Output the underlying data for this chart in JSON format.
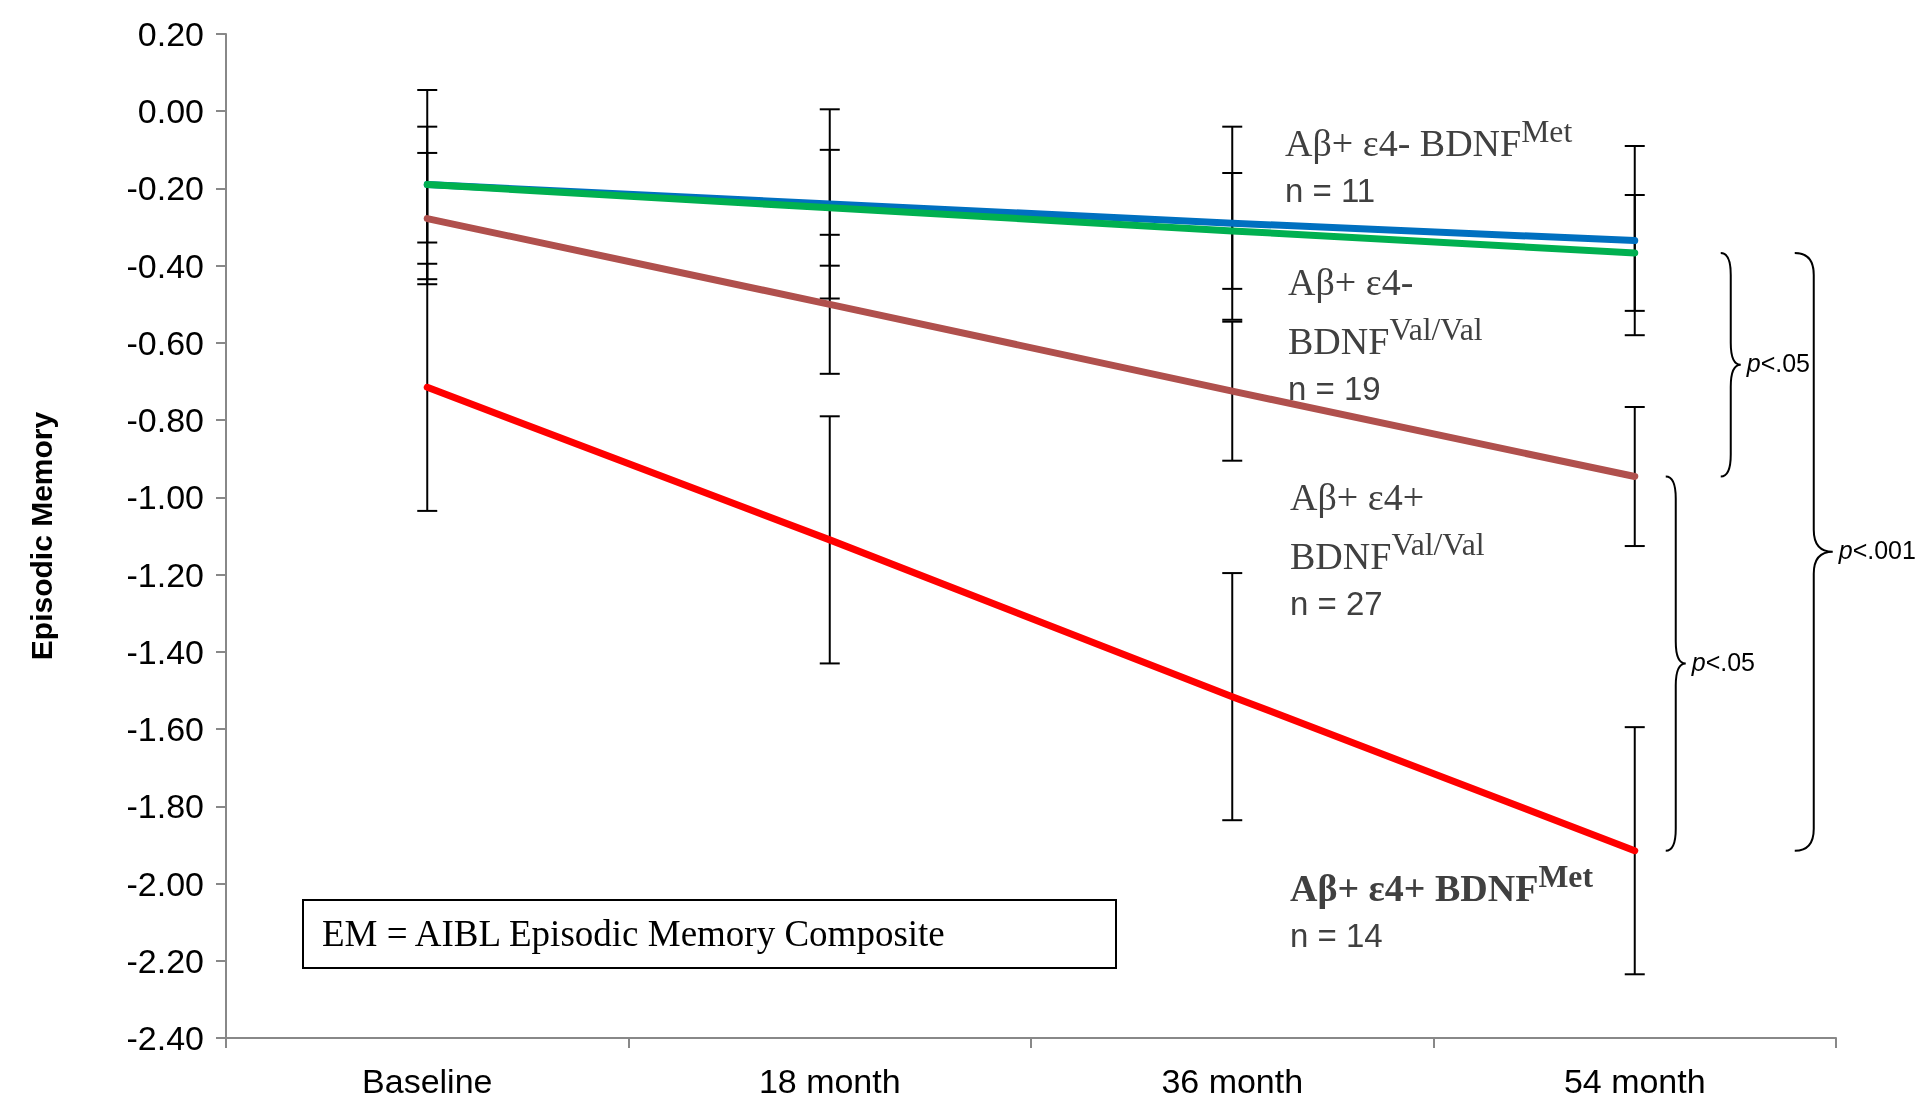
{
  "chart_data": {
    "type": "line",
    "ylabel": "Episodic Memory",
    "categories": [
      "Baseline",
      "18 month",
      "36 month",
      "54 month"
    ],
    "ylim": [
      -2.4,
      0.2
    ],
    "yticks": [
      {
        "value": 0.2,
        "label": "0.20"
      },
      {
        "value": 0,
        "label": "0.00"
      },
      {
        "value": -0.2,
        "label": "-0.20"
      },
      {
        "value": -0.4,
        "label": "-0.40"
      },
      {
        "value": -0.6,
        "label": "-0.60"
      },
      {
        "value": -0.8,
        "label": "-0.80"
      },
      {
        "value": -1,
        "label": "-1.00"
      },
      {
        "value": -1.2,
        "label": "-1.20"
      },
      {
        "value": -1.4,
        "label": "-1.40"
      },
      {
        "value": -1.6,
        "label": "-1.60"
      },
      {
        "value": -1.8,
        "label": "-1.80"
      },
      {
        "value": -2,
        "label": "-2.00"
      },
      {
        "value": -2.2,
        "label": "-2.20"
      },
      {
        "value": -2.4,
        "label": "-2.40"
      }
    ],
    "grid": false,
    "legend": false,
    "marker": "none",
    "line_style": "solid",
    "series": [
      {
        "name": "Aβ+ ε4- BDNF$^{Met}$",
        "color": "#0070c0",
        "values": [
          -0.19,
          -0.24,
          -0.29,
          -0.335
        ],
        "errors": [
          0.245,
          0.245,
          0.25,
          0.245
        ]
      },
      {
        "name": "Aβ+ ε4- BDNF$^{Val/Val}$",
        "color": "#00b050",
        "values": [
          -0.19,
          -0.25,
          -0.31,
          -0.367
        ],
        "errors": [
          0.15,
          0.15,
          0.15,
          0.15
        ]
      },
      {
        "name": "Aβ+ ε4+ BDNF$^{Val/Val}$",
        "color": "#b0504d",
        "values": [
          -0.278,
          -0.5,
          -0.725,
          -0.946
        ],
        "errors": [
          0.17,
          0.18,
          0.18,
          0.18
        ]
      },
      {
        "name": "Aβ+ ε4+ BDNF$^{Met}$",
        "color": "#ff0000",
        "values": [
          -0.715,
          -1.11,
          -1.516,
          -1.915
        ],
        "errors": [
          0.32,
          0.32,
          0.32,
          0.32
        ]
      }
    ],
    "annotations": [
      "n = 11",
      "n = 19",
      "n = 27",
      "n = 14",
      "p<.05",
      "p<.05",
      "p<.001",
      "EM = AIBL Episodic Memory Composite"
    ]
  }
}
